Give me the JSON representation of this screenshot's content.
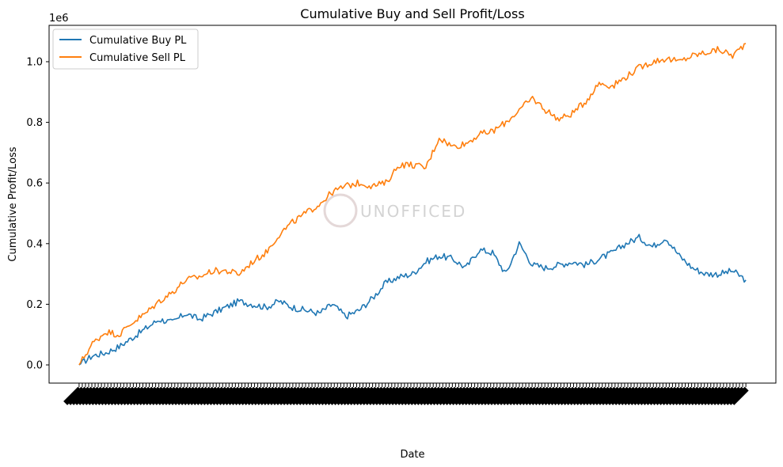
{
  "chart_data": {
    "type": "line",
    "title": "Cumulative Buy and Sell Profit/Loss",
    "xlabel": "Date",
    "ylabel": "Cumulative Profit/Loss",
    "y_offset_label": "1e6",
    "ylim": [
      -0.06,
      1.12
    ],
    "y_ticks": [
      0.0,
      0.2,
      0.4,
      0.6,
      0.8,
      1.0
    ],
    "y_tick_labels": [
      "0.0",
      "0.2",
      "0.4",
      "0.6",
      "0.8",
      "1.0"
    ],
    "x_tick_labels_legible": false,
    "legend_position": "upper-left",
    "watermark_text": "UNOFFICED",
    "x": [
      0,
      2,
      4,
      6,
      8,
      10,
      12,
      14,
      16,
      18,
      20,
      22,
      24,
      26,
      28,
      30,
      32,
      34,
      36,
      38,
      40,
      42,
      44,
      46,
      48,
      50,
      52,
      54,
      56,
      58,
      60,
      62,
      64,
      66,
      68,
      70,
      72,
      74,
      76,
      78,
      80,
      82,
      84,
      86,
      88,
      90,
      92,
      94,
      96,
      98,
      100
    ],
    "series": [
      {
        "name": "Cumulative Buy PL",
        "color": "#1f77b4",
        "values": [
          0.0,
          0.03,
          0.04,
          0.06,
          0.09,
          0.12,
          0.15,
          0.14,
          0.17,
          0.15,
          0.17,
          0.19,
          0.21,
          0.2,
          0.19,
          0.21,
          0.19,
          0.18,
          0.17,
          0.2,
          0.16,
          0.18,
          0.22,
          0.27,
          0.29,
          0.3,
          0.34,
          0.36,
          0.35,
          0.32,
          0.38,
          0.37,
          0.3,
          0.4,
          0.33,
          0.32,
          0.33,
          0.34,
          0.33,
          0.35,
          0.37,
          0.4,
          0.42,
          0.39,
          0.42,
          0.36,
          0.32,
          0.3,
          0.3,
          0.31,
          0.28
        ]
      },
      {
        "name": "Cumulative Sell PL",
        "color": "#ff7f0e",
        "values": [
          0.0,
          0.07,
          0.11,
          0.1,
          0.14,
          0.17,
          0.21,
          0.24,
          0.28,
          0.29,
          0.31,
          0.31,
          0.3,
          0.34,
          0.37,
          0.43,
          0.47,
          0.5,
          0.53,
          0.57,
          0.59,
          0.6,
          0.59,
          0.6,
          0.66,
          0.66,
          0.65,
          0.75,
          0.72,
          0.73,
          0.76,
          0.77,
          0.8,
          0.84,
          0.88,
          0.84,
          0.81,
          0.83,
          0.87,
          0.93,
          0.92,
          0.95,
          0.98,
          1.0,
          1.01,
          1.0,
          1.02,
          1.03,
          1.04,
          1.02,
          1.06
        ]
      }
    ]
  }
}
